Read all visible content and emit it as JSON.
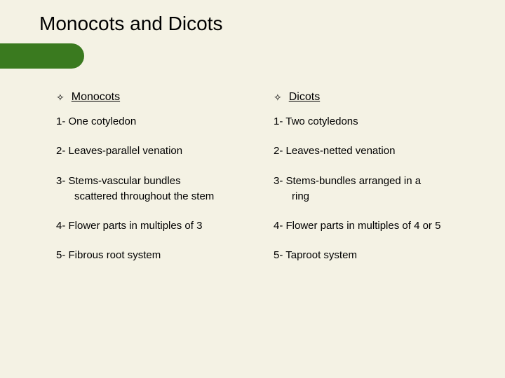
{
  "background_color": "#f4f2e4",
  "banner_color": "#3a7a1f",
  "title": "Monocots and Dicots",
  "title_fontsize": 28,
  "body_fontsize": 15,
  "header_fontsize": 16,
  "bullet_glyph": "✧",
  "left": {
    "header": "Monocots",
    "items": [
      "1- One cotyledon",
      "2- Leaves-parallel venation",
      "3- Stems-vascular bundles",
      "scattered throughout the stem",
      "4- Flower parts in multiples of 3",
      "5- Fibrous root system"
    ],
    "indent_indices": [
      3
    ]
  },
  "right": {
    "header": "Dicots",
    "items": [
      "1- Two cotyledons",
      "2- Leaves-netted venation",
      "3- Stems-bundles arranged in a",
      "ring",
      "4- Flower parts in multiples of 4 or 5",
      "5- Taproot system"
    ],
    "indent_indices": [
      3
    ]
  }
}
